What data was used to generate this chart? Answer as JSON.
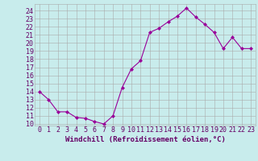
{
  "x": [
    0,
    1,
    2,
    3,
    4,
    5,
    6,
    7,
    8,
    9,
    10,
    11,
    12,
    13,
    14,
    15,
    16,
    17,
    18,
    19,
    20,
    21,
    22,
    23
  ],
  "y": [
    14,
    13,
    11.5,
    11.5,
    10.8,
    10.7,
    10.3,
    10.0,
    11.0,
    14.5,
    16.8,
    17.8,
    21.3,
    21.8,
    22.6,
    23.3,
    24.3,
    23.2,
    22.3,
    21.3,
    19.3,
    20.7,
    19.3,
    19.3
  ],
  "line_color": "#990099",
  "marker": "D",
  "marker_size": 2,
  "bg_color": "#c8ecec",
  "grid_color": "#aaaaaa",
  "xlabel": "Windchill (Refroidissement éolien,°C)",
  "ylabel_ticks": [
    10,
    11,
    12,
    13,
    14,
    15,
    16,
    17,
    18,
    19,
    20,
    21,
    22,
    23,
    24
  ],
  "xlim": [
    -0.5,
    23.5
  ],
  "ylim": [
    9.8,
    24.8
  ],
  "xlabel_color": "#660066",
  "tick_color": "#660066",
  "font_size": 6.0
}
